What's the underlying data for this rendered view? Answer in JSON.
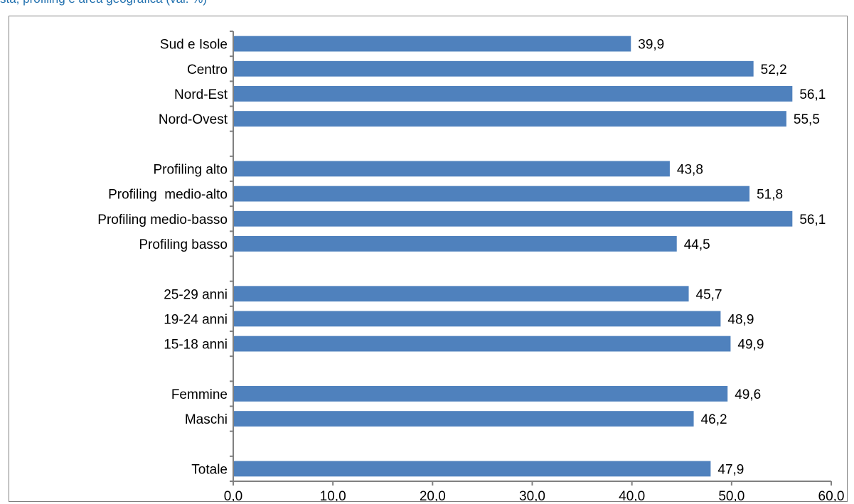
{
  "caption": "sta, profiling e area geografica (val. %)",
  "colors": {
    "bar": "#4f81bd",
    "caption": "#1f6fae",
    "axis": "#808080",
    "frame": "#7f7f7f"
  },
  "chart_data": {
    "type": "bar",
    "orientation": "horizontal",
    "title": "",
    "xlabel": "",
    "ylabel": "",
    "xlim": [
      0,
      60
    ],
    "xticks": [
      "0,0",
      "10,0",
      "20,0",
      "30,0",
      "40,0",
      "50,0",
      "60,0"
    ],
    "grid": false,
    "legend": "none",
    "groups": [
      {
        "categories": [
          "Sud e Isole",
          "Centro",
          "Nord-Est",
          "Nord-Ovest"
        ],
        "values": [
          39.9,
          52.2,
          56.1,
          55.5
        ],
        "labels": [
          "39,9",
          "52,2",
          "56,1",
          "55,5"
        ]
      },
      {
        "categories": [
          "Profiling alto",
          "Profiling  medio-alto",
          "Profiling medio-basso",
          "Profiling basso"
        ],
        "values": [
          43.8,
          51.8,
          56.1,
          44.5
        ],
        "labels": [
          "43,8",
          "51,8",
          "56,1",
          "44,5"
        ]
      },
      {
        "categories": [
          "25-29 anni",
          "19-24 anni",
          "15-18 anni"
        ],
        "values": [
          45.7,
          48.9,
          49.9
        ],
        "labels": [
          "45,7",
          "48,9",
          "49,9"
        ]
      },
      {
        "categories": [
          "Femmine",
          "Maschi"
        ],
        "values": [
          49.6,
          46.2
        ],
        "labels": [
          "49,6",
          "46,2"
        ]
      },
      {
        "categories": [
          "Totale"
        ],
        "values": [
          47.9
        ],
        "labels": [
          "47,9"
        ]
      }
    ]
  }
}
